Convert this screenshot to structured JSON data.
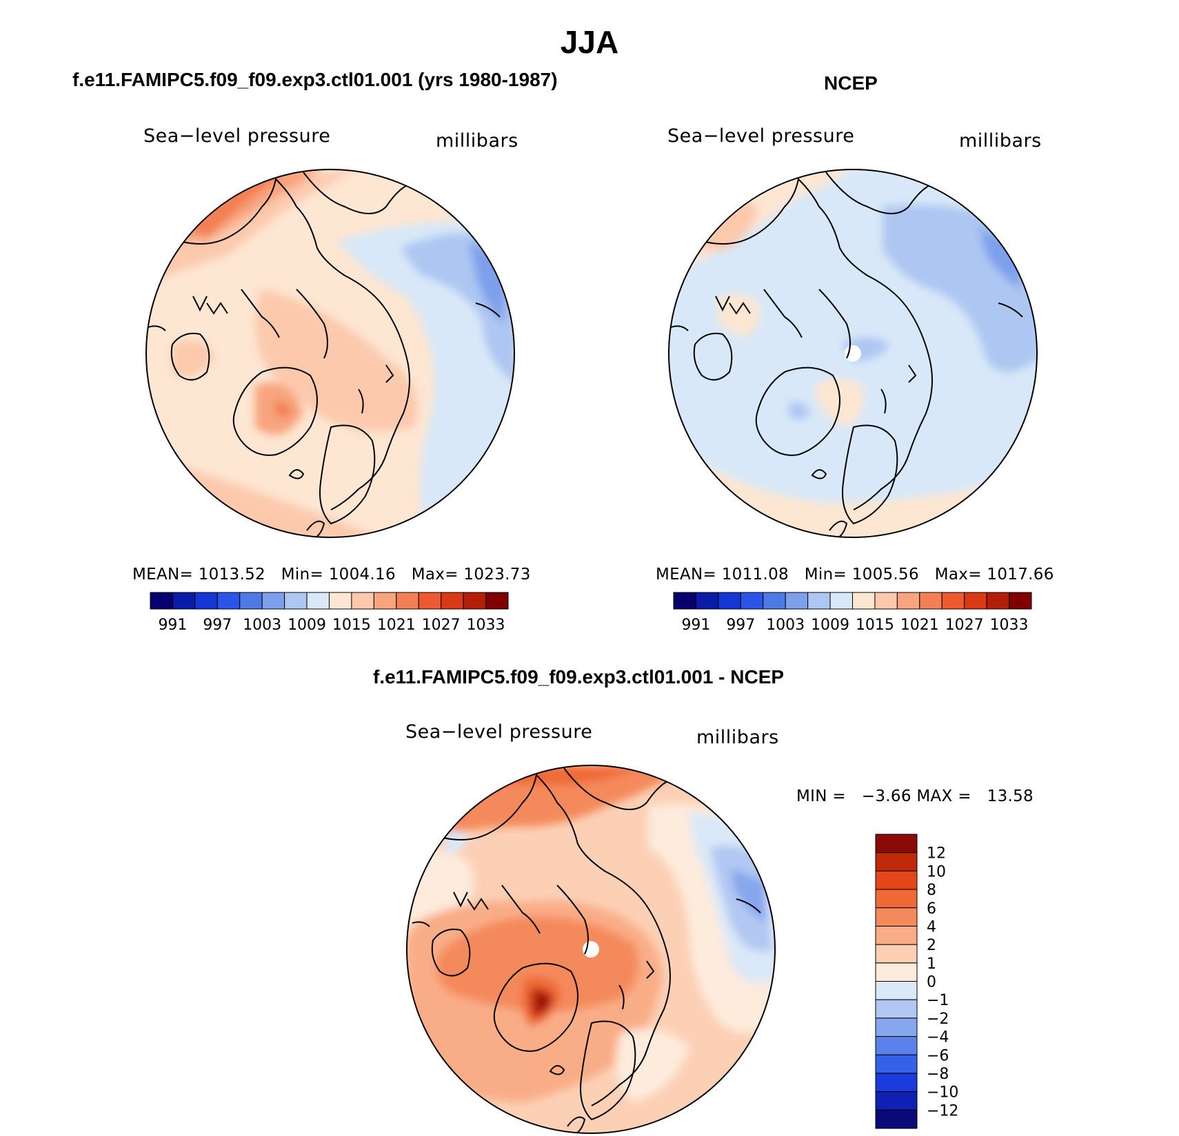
{
  "title": "JJA",
  "panels": [
    {
      "id": "model",
      "header": "f.e11.FAMIPC5.f09_f09.exp3.ctl01.001 (yrs 1980-1987)",
      "variable": "Sea−level pressure",
      "units": "millibars",
      "stats": {
        "mean_label": "MEAN=",
        "mean": "1013.52",
        "min_label": "Min=",
        "min": "1004.16",
        "max_label": "Max=",
        "max": "1023.73"
      }
    },
    {
      "id": "ncep",
      "header": "NCEP",
      "variable": "Sea−level pressure",
      "units": "millibars",
      "stats": {
        "mean_label": "MEAN=",
        "mean": "1011.08",
        "min_label": "Min=",
        "min": "1005.56",
        "max_label": "Max=",
        "max": "1017.66"
      }
    },
    {
      "id": "diff",
      "header": "f.e11.FAMIPC5.f09_f09.exp3.ctl01.001 - NCEP",
      "variable": "Sea−level pressure",
      "units": "millibars",
      "minmax": {
        "min_label": "MIN =",
        "min": "−3.66",
        "max_label": "MAX =",
        "max": "13.58"
      }
    }
  ],
  "abs_colorbar": {
    "colors": [
      "#08006e",
      "#0a1ba8",
      "#1436d4",
      "#2a55e8",
      "#4d7ae6",
      "#7ea0ec",
      "#aec6f2",
      "#d8e8f8",
      "#fde6d2",
      "#fcc9ad",
      "#f8a47e",
      "#f37f55",
      "#ec5a2e",
      "#d93a14",
      "#b41e08",
      "#800000"
    ],
    "tick_labels": [
      "991",
      "997",
      "1003",
      "1009",
      "1015",
      "1021",
      "1027",
      "1033"
    ]
  },
  "diff_colorbar": {
    "colors": [
      "#0a0a7a",
      "#0f20b4",
      "#1a3cdc",
      "#3560e8",
      "#5a82ea",
      "#86a6ee",
      "#b2c8f2",
      "#dbe8f8",
      "#fdebdc",
      "#fcd0b5",
      "#f9ad87",
      "#f48a5c",
      "#f06a38",
      "#e4461a",
      "#c02a0a",
      "#8a0a0a"
    ],
    "tick_labels": [
      "12",
      "10",
      "8",
      "6",
      "4",
      "2",
      "1",
      "0",
      "−1",
      "−2",
      "−4",
      "−6",
      "−8",
      "−10",
      "−12"
    ]
  },
  "chart_data": {
    "type": "map",
    "projection": "north polar stereographic",
    "season": "JJA",
    "variable": "Sea-level pressure",
    "units": "millibars",
    "panels": [
      {
        "name": "f.e11.FAMIPC5.f09_f09.exp3.ctl01.001 (yrs 1980-1987)",
        "mean": 1013.52,
        "min": 1004.16,
        "max": 1023.73,
        "levels": [
          991,
          994,
          997,
          1000,
          1003,
          1006,
          1009,
          1012,
          1015,
          1018,
          1021,
          1024,
          1027,
          1030,
          1033
        ]
      },
      {
        "name": "NCEP",
        "mean": 1011.08,
        "min": 1005.56,
        "max": 1017.66,
        "levels": [
          991,
          994,
          997,
          1000,
          1003,
          1006,
          1009,
          1012,
          1015,
          1018,
          1021,
          1024,
          1027,
          1030,
          1033
        ]
      },
      {
        "name": "f.e11.FAMIPC5.f09_f09.exp3.ctl01.001 - NCEP",
        "min": -3.66,
        "max": 13.58,
        "levels": [
          -12,
          -10,
          -8,
          -6,
          -4,
          -2,
          -1,
          0,
          1,
          2,
          4,
          6,
          8,
          10,
          12
        ]
      }
    ]
  }
}
